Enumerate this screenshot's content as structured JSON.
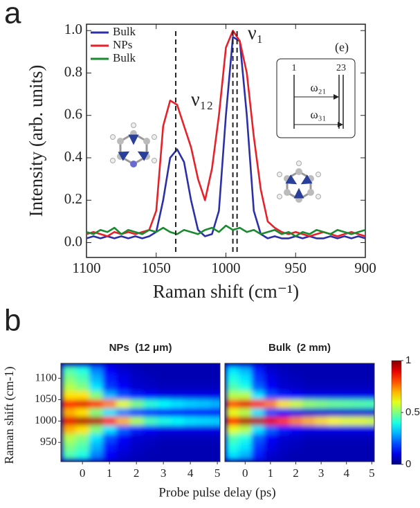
{
  "chart_data": [
    {
      "type": "line",
      "panel": "a",
      "xlabel": "Raman shift (cm⁻¹)",
      "ylabel": "Intensity (arb. units)",
      "x": [
        1100,
        1095,
        1090,
        1085,
        1080,
        1075,
        1070,
        1065,
        1060,
        1055,
        1050,
        1045,
        1040,
        1035,
        1030,
        1025,
        1020,
        1015,
        1010,
        1005,
        1000,
        995,
        990,
        985,
        980,
        975,
        970,
        965,
        960,
        955,
        950,
        945,
        940,
        935,
        930,
        925,
        920,
        915,
        910,
        905,
        900
      ],
      "series": [
        {
          "name": "Bulk",
          "color": "#2b2fa8",
          "values": [
            0.02,
            0.03,
            0.02,
            0.03,
            0.02,
            0.03,
            0.02,
            0.03,
            0.02,
            0.03,
            0.05,
            0.2,
            0.4,
            0.44,
            0.38,
            0.2,
            0.06,
            0.03,
            0.04,
            0.15,
            0.6,
            0.97,
            0.95,
            0.6,
            0.15,
            0.04,
            0.02,
            0.03,
            0.02,
            0.02,
            0.03,
            0.02,
            0.03,
            0.02,
            0.02,
            0.03,
            0.02,
            0.03,
            0.02,
            0.03,
            0.02
          ]
        },
        {
          "name": "NPs",
          "color": "#e8202a",
          "values": [
            0.04,
            0.05,
            0.04,
            0.03,
            0.05,
            0.04,
            0.05,
            0.04,
            0.05,
            0.06,
            0.15,
            0.55,
            0.67,
            0.65,
            0.55,
            0.45,
            0.3,
            0.2,
            0.35,
            0.6,
            0.92,
            1.0,
            0.95,
            0.8,
            0.5,
            0.25,
            0.1,
            0.07,
            0.05,
            0.04,
            0.05,
            0.04,
            0.03,
            0.04,
            0.05,
            0.04,
            0.03,
            0.04,
            0.05,
            0.04,
            0.03
          ]
        },
        {
          "name": "Bulk",
          "color": "#1a8a2e",
          "values": [
            0.05,
            0.04,
            0.06,
            0.05,
            0.07,
            0.04,
            0.06,
            0.05,
            0.04,
            0.06,
            0.05,
            0.07,
            0.05,
            0.04,
            0.06,
            0.05,
            0.04,
            0.06,
            0.07,
            0.05,
            0.08,
            0.06,
            0.07,
            0.05,
            0.06,
            0.04,
            0.05,
            0.06,
            0.04,
            0.05,
            0.03,
            0.05,
            0.04,
            0.06,
            0.05,
            0.04,
            0.06,
            0.05,
            0.04,
            0.05,
            0.06
          ]
        }
      ],
      "vlines": [
        1036,
        995,
        992
      ],
      "annotations": [
        "ν₁",
        "ν₁₂",
        "(e)"
      ],
      "inset_labels": [
        "1",
        "23",
        "ω₂₁",
        "ω₃₁"
      ],
      "xlim": [
        1100,
        900
      ],
      "xticks": [
        1100,
        1050,
        1000,
        950,
        900
      ],
      "ylim": [
        -0.07,
        1.03
      ],
      "yticks": [
        {
          "value": 0,
          "label": "0.0"
        },
        {
          "value": 0.2,
          "label": "0.2"
        },
        {
          "value": 0.4,
          "label": "0.4"
        },
        {
          "value": 0.6,
          "label": "0.6"
        },
        {
          "value": 0.8,
          "label": "0.8"
        },
        {
          "value": 1,
          "label": "1.0"
        }
      ],
      "legend": "upper left"
    },
    {
      "type": "heatmap",
      "panel": "b",
      "title": "NPs  (12 μm)",
      "xlabel": "Probe pulse delay (ps)",
      "ylabel": "Raman shift (cm-1)",
      "x": [
        -0.5,
        0,
        0.5,
        1,
        1.5,
        2,
        2.5,
        3,
        3.5,
        4,
        4.5,
        5
      ],
      "y": [
        1120,
        1100,
        1080,
        1060,
        1040,
        1020,
        1000,
        980,
        960,
        940,
        920
      ],
      "z": [
        [
          0.45,
          0.4,
          0.25,
          0.12,
          0.08,
          0.06,
          0.05,
          0.05,
          0.05,
          0.05,
          0.05,
          0.05
        ],
        [
          0.5,
          0.45,
          0.3,
          0.15,
          0.1,
          0.07,
          0.06,
          0.05,
          0.05,
          0.05,
          0.05,
          0.05
        ],
        [
          0.55,
          0.5,
          0.35,
          0.18,
          0.12,
          0.08,
          0.07,
          0.06,
          0.06,
          0.06,
          0.06,
          0.06
        ],
        [
          0.65,
          0.65,
          0.5,
          0.3,
          0.2,
          0.15,
          0.12,
          0.1,
          0.1,
          0.1,
          0.1,
          0.1
        ],
        [
          0.85,
          0.9,
          0.85,
          0.75,
          0.6,
          0.5,
          0.42,
          0.38,
          0.35,
          0.33,
          0.32,
          0.3
        ],
        [
          0.7,
          0.65,
          0.5,
          0.35,
          0.25,
          0.18,
          0.15,
          0.12,
          0.12,
          0.12,
          0.12,
          0.12
        ],
        [
          0.9,
          0.95,
          0.95,
          0.85,
          0.7,
          0.55,
          0.45,
          0.4,
          0.38,
          0.35,
          0.34,
          0.33
        ],
        [
          0.7,
          0.65,
          0.5,
          0.35,
          0.22,
          0.15,
          0.12,
          0.1,
          0.1,
          0.1,
          0.1,
          0.1
        ],
        [
          0.55,
          0.5,
          0.35,
          0.2,
          0.12,
          0.08,
          0.07,
          0.06,
          0.06,
          0.06,
          0.06,
          0.06
        ],
        [
          0.5,
          0.45,
          0.3,
          0.15,
          0.1,
          0.07,
          0.06,
          0.05,
          0.05,
          0.05,
          0.05,
          0.05
        ],
        [
          0.45,
          0.4,
          0.25,
          0.12,
          0.08,
          0.06,
          0.05,
          0.05,
          0.05,
          0.05,
          0.05,
          0.05
        ]
      ],
      "xlim": [
        -0.8,
        5.1
      ],
      "xticks": [
        0,
        1,
        2,
        3,
        4,
        5
      ],
      "ylim": [
        905,
        1135
      ],
      "yticks": [
        950,
        1000,
        1050,
        1100
      ]
    },
    {
      "type": "heatmap",
      "title": "Bulk  (2 mm)",
      "x": [
        -0.5,
        0,
        0.5,
        1,
        1.5,
        2,
        2.5,
        3,
        3.5,
        4,
        4.5,
        5
      ],
      "y": [
        1120,
        1100,
        1080,
        1060,
        1040,
        1020,
        1000,
        980,
        960,
        940,
        920
      ],
      "z": [
        [
          0.35,
          0.3,
          0.15,
          0.08,
          0.06,
          0.05,
          0.05,
          0.05,
          0.05,
          0.05,
          0.05,
          0.05
        ],
        [
          0.4,
          0.35,
          0.18,
          0.1,
          0.07,
          0.06,
          0.05,
          0.05,
          0.05,
          0.05,
          0.05,
          0.05
        ],
        [
          0.45,
          0.4,
          0.22,
          0.12,
          0.08,
          0.07,
          0.06,
          0.06,
          0.06,
          0.06,
          0.06,
          0.06
        ],
        [
          0.55,
          0.55,
          0.35,
          0.2,
          0.15,
          0.12,
          0.1,
          0.1,
          0.1,
          0.1,
          0.1,
          0.1
        ],
        [
          0.8,
          0.9,
          0.85,
          0.75,
          0.65,
          0.58,
          0.52,
          0.5,
          0.48,
          0.47,
          0.46,
          0.45
        ],
        [
          0.6,
          0.55,
          0.35,
          0.2,
          0.12,
          0.1,
          0.08,
          0.08,
          0.08,
          0.08,
          0.08,
          0.08
        ],
        [
          0.85,
          0.95,
          0.95,
          0.9,
          0.82,
          0.75,
          0.7,
          0.66,
          0.63,
          0.6,
          0.6,
          0.58
        ],
        [
          0.6,
          0.55,
          0.35,
          0.22,
          0.15,
          0.12,
          0.1,
          0.1,
          0.1,
          0.1,
          0.1,
          0.1
        ],
        [
          0.45,
          0.4,
          0.22,
          0.12,
          0.08,
          0.07,
          0.06,
          0.06,
          0.06,
          0.06,
          0.06,
          0.06
        ],
        [
          0.4,
          0.35,
          0.18,
          0.1,
          0.07,
          0.06,
          0.05,
          0.05,
          0.05,
          0.05,
          0.05,
          0.05
        ],
        [
          0.35,
          0.3,
          0.15,
          0.08,
          0.06,
          0.05,
          0.05,
          0.05,
          0.05,
          0.05,
          0.05,
          0.05
        ]
      ],
      "xlim": [
        -0.8,
        5.1
      ],
      "xticks": [
        0,
        1,
        2,
        3,
        4,
        5
      ],
      "ylim": [
        905,
        1135
      ],
      "colorbar": {
        "lim": [
          0,
          1
        ],
        "ticks": [
          0,
          0.5,
          1
        ]
      }
    }
  ]
}
